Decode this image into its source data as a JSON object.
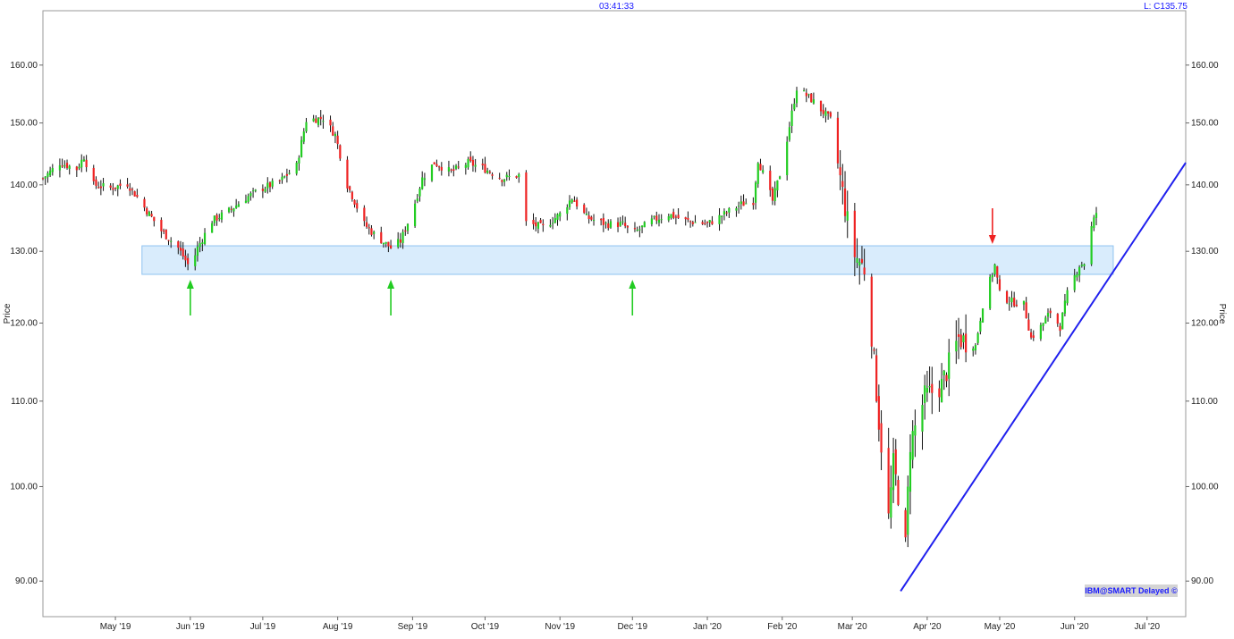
{
  "header": {
    "clock": "03:41:33",
    "last_quote": "L: C135.75"
  },
  "footer": {
    "source_badge": "IBM@SMART Delayed"
  },
  "colors": {
    "up": "#22cc22",
    "down": "#ee2222",
    "wick": "#111111",
    "zone_fill": "#d9ecfc",
    "zone_border": "#8fc3f0",
    "trendline": "#2020ee",
    "up_arrow": "#22cc22",
    "down_arrow": "#ee2222",
    "header_text": "#1a1aff"
  },
  "chart_data": {
    "type": "candlestick",
    "symbol": "IBM",
    "ylabel_left": "Price",
    "ylabel_right": "Price",
    "y_scale": "log",
    "ylim": [
      86.5,
      170
    ],
    "x_range": [
      "2019-04-01",
      "2020-07-17"
    ],
    "yticks": [
      "90.00",
      "100.00",
      "110.00",
      "120.00",
      "130.00",
      "140.00",
      "150.00",
      "160.00"
    ],
    "ytick_values": [
      90,
      100,
      110,
      120,
      130,
      140,
      150,
      160
    ],
    "xticks": [
      {
        "date": "2019-05-01",
        "label": "May '19"
      },
      {
        "date": "2019-06-01",
        "label": "Jun '19"
      },
      {
        "date": "2019-07-01",
        "label": "Jul '19"
      },
      {
        "date": "2019-08-01",
        "label": "Aug '19"
      },
      {
        "date": "2019-09-01",
        "label": "Sep '19"
      },
      {
        "date": "2019-10-01",
        "label": "Oct '19"
      },
      {
        "date": "2019-11-01",
        "label": "Nov '19"
      },
      {
        "date": "2019-12-01",
        "label": "Dec '19"
      },
      {
        "date": "2020-01-01",
        "label": "Jan '20"
      },
      {
        "date": "2020-02-01",
        "label": "Feb '20"
      },
      {
        "date": "2020-03-01",
        "label": "Mar '20"
      },
      {
        "date": "2020-04-01",
        "label": "Apr '20"
      },
      {
        "date": "2020-05-01",
        "label": "May '20"
      },
      {
        "date": "2020-06-01",
        "label": "Jun '20"
      },
      {
        "date": "2020-07-01",
        "label": "Jul '20"
      }
    ],
    "close_path": [
      [
        "2019-04-01",
        141.0
      ],
      [
        "2019-04-08",
        143.5
      ],
      [
        "2019-04-15",
        142.5
      ],
      [
        "2019-04-18",
        144.5
      ],
      [
        "2019-04-22",
        140.0
      ],
      [
        "2019-04-29",
        139.5
      ],
      [
        "2019-05-06",
        140.2
      ],
      [
        "2019-05-13",
        136.5
      ],
      [
        "2019-05-20",
        133.0
      ],
      [
        "2019-05-27",
        130.5
      ],
      [
        "2019-06-01",
        127.5
      ],
      [
        "2019-06-04",
        130.5
      ],
      [
        "2019-06-10",
        134.5
      ],
      [
        "2019-06-17",
        136.0
      ],
      [
        "2019-06-24",
        138.0
      ],
      [
        "2019-07-01",
        139.5
      ],
      [
        "2019-07-08",
        140.5
      ],
      [
        "2019-07-15",
        143.0
      ],
      [
        "2019-07-19",
        150.5
      ],
      [
        "2019-07-26",
        150.8
      ],
      [
        "2019-07-31",
        148.0
      ],
      [
        "2019-08-05",
        140.0
      ],
      [
        "2019-08-12",
        134.0
      ],
      [
        "2019-08-16",
        132.5
      ],
      [
        "2019-08-23",
        130.5
      ],
      [
        "2019-08-27",
        131.5
      ],
      [
        "2019-09-01",
        136.0
      ],
      [
        "2019-09-05",
        141.0
      ],
      [
        "2019-09-10",
        143.5
      ],
      [
        "2019-09-17",
        142.0
      ],
      [
        "2019-09-24",
        143.5
      ],
      [
        "2019-10-01",
        142.5
      ],
      [
        "2019-10-08",
        141.0
      ],
      [
        "2019-10-15",
        141.5
      ],
      [
        "2019-10-18",
        134.2
      ],
      [
        "2019-10-25",
        133.5
      ],
      [
        "2019-11-01",
        135.5
      ],
      [
        "2019-11-06",
        138.0
      ],
      [
        "2019-11-12",
        135.0
      ],
      [
        "2019-11-20",
        134.0
      ],
      [
        "2019-11-27",
        134.0
      ],
      [
        "2019-12-01",
        132.5
      ],
      [
        "2019-12-09",
        134.5
      ],
      [
        "2019-12-16",
        135.5
      ],
      [
        "2019-12-23",
        134.5
      ],
      [
        "2020-01-01",
        134.0
      ],
      [
        "2020-01-08",
        135.5
      ],
      [
        "2020-01-15",
        137.0
      ],
      [
        "2020-01-20",
        137.5
      ],
      [
        "2020-01-22",
        144.0
      ],
      [
        "2020-01-28",
        137.5
      ],
      [
        "2020-02-01",
        143.0
      ],
      [
        "2020-02-07",
        156.0
      ],
      [
        "2020-02-13",
        154.0
      ],
      [
        "2020-02-21",
        150.5
      ],
      [
        "2020-02-25",
        141.0
      ],
      [
        "2020-03-01",
        130.0
      ],
      [
        "2020-03-06",
        127.5
      ],
      [
        "2020-03-09",
        118.5
      ],
      [
        "2020-03-12",
        107.5
      ],
      [
        "2020-03-16",
        96.5
      ],
      [
        "2020-03-18",
        102.5
      ],
      [
        "2020-03-21",
        97.5
      ],
      [
        "2020-03-23",
        93.5
      ],
      [
        "2020-03-25",
        105.0
      ],
      [
        "2020-03-31",
        110.5
      ],
      [
        "2020-04-07",
        112.0
      ],
      [
        "2020-04-14",
        118.0
      ],
      [
        "2020-04-21",
        117.0
      ],
      [
        "2020-04-24",
        122.5
      ],
      [
        "2020-04-29",
        128.0
      ],
      [
        "2020-05-01",
        124.0
      ],
      [
        "2020-05-05",
        123.0
      ],
      [
        "2020-05-11",
        122.5
      ],
      [
        "2020-05-14",
        118.0
      ],
      [
        "2020-05-18",
        119.5
      ],
      [
        "2020-05-22",
        121.5
      ],
      [
        "2020-05-26",
        119.5
      ],
      [
        "2020-05-29",
        124.0
      ],
      [
        "2020-06-03",
        128.0
      ],
      [
        "2020-06-06",
        128.5
      ],
      [
        "2020-06-08",
        133.5
      ],
      [
        "2020-06-10",
        135.75
      ]
    ],
    "support_zone": {
      "low": 126.7,
      "high": 130.8,
      "start": "2019-05-12",
      "end": "2020-06-17"
    },
    "trendline": {
      "start": [
        "2020-03-21",
        89.0
      ],
      "end": [
        "2020-07-17",
        143.5
      ]
    },
    "buy_arrows": [
      "2019-06-01",
      "2019-08-23",
      "2019-12-01"
    ],
    "sell_arrows": [
      "2020-04-28"
    ]
  }
}
